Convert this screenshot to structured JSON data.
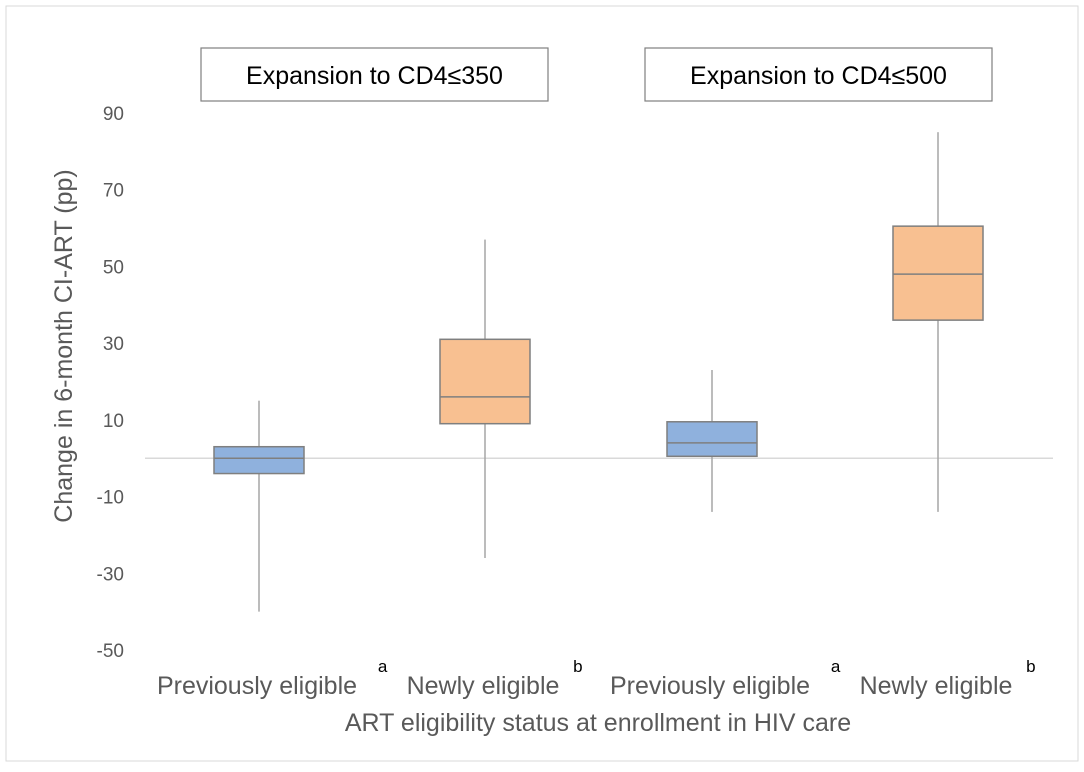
{
  "chart_data": {
    "type": "boxplot",
    "ylabel": "Change in 6-month CI-ART (pp)",
    "xlabel": "ART eligibility status at enrollment in HIV care",
    "ylim": [
      -50,
      90
    ],
    "yticks": [
      90,
      70,
      50,
      30,
      10,
      -10,
      -30,
      -50
    ],
    "reference_line": 0,
    "groups": [
      {
        "label": "Expansion to CD4≤350"
      },
      {
        "label": "Expansion to CD4≤500"
      }
    ],
    "boxes": [
      {
        "label": "Previously eligible",
        "sup": "a",
        "group": 0,
        "whisker_low": -40,
        "q1": -4,
        "median": 0,
        "q3": 3,
        "whisker_high": 15,
        "color": "#8FB1DD"
      },
      {
        "label": "Newly eligible",
        "sup": "b",
        "group": 0,
        "whisker_low": -26,
        "q1": 9,
        "median": 16,
        "q3": 31,
        "whisker_high": 57,
        "color": "#F8C091"
      },
      {
        "label": "Previously eligible",
        "sup": "a",
        "group": 1,
        "whisker_low": -14,
        "q1": 0.5,
        "median": 4,
        "q3": 9.5,
        "whisker_high": 23,
        "color": "#8FB1DD"
      },
      {
        "label": "Newly eligible",
        "sup": "b",
        "group": 1,
        "whisker_low": -14,
        "q1": 36,
        "median": 48,
        "q3": 60.5,
        "whisker_high": 85,
        "color": "#F8C091"
      }
    ]
  }
}
